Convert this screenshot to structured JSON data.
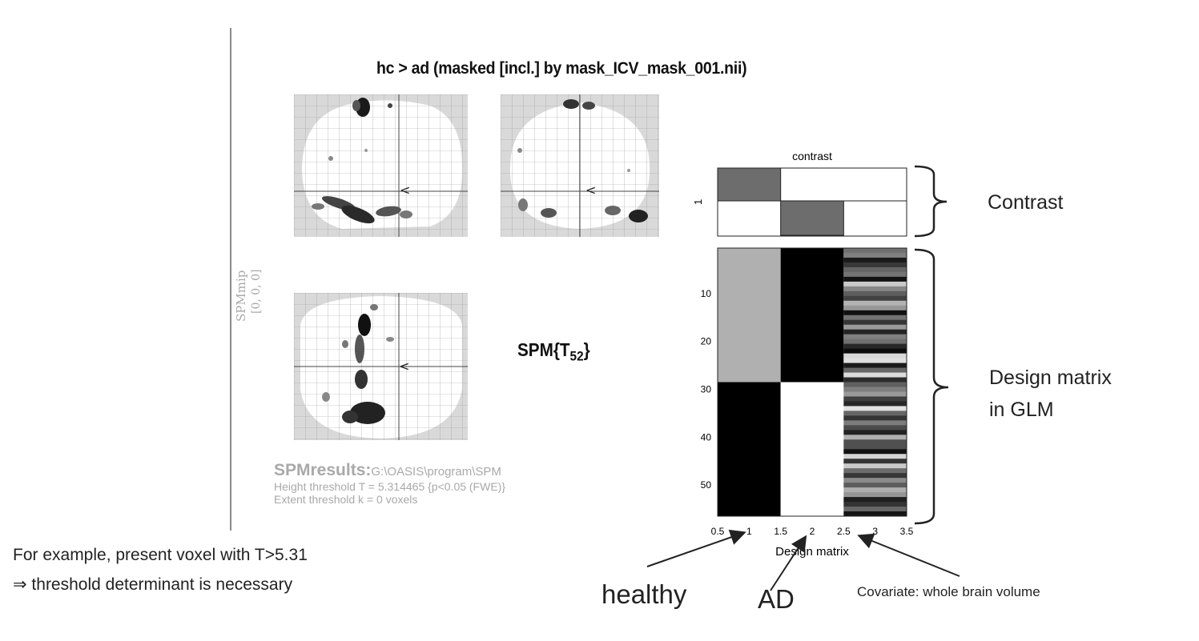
{
  "figure": {
    "title": "hc > ad (masked [incl.] by mask_ICV_mask_001.nii)",
    "side_label": "SPMmip",
    "side_coords": "[0, 0, 0]",
    "stat_label_main": "SPM{T",
    "stat_label_sub": "52",
    "stat_label_end": "}",
    "results_title": "SPMresults:",
    "results_path": "G:\\OASIS\\program\\SPM",
    "height_threshold": "Height threshold T = 5.314465  {p<0.05 (FWE)}",
    "extent_threshold": "Extent threshold k = 0 voxels"
  },
  "contrast_plot": {
    "title": "contrast",
    "ytick": "1",
    "weights": [
      1,
      -1,
      0
    ]
  },
  "design_matrix": {
    "xlabel": "Design matrix",
    "xticks": [
      "0.5",
      "1",
      "1.5",
      "2",
      "2.5",
      "3",
      "3.5"
    ],
    "yticks": [
      "10",
      "20",
      "30",
      "40",
      "50"
    ],
    "rows": 56,
    "group_split_row": 28
  },
  "annotations": {
    "contrast": "Contrast",
    "design_line1": "Design matrix",
    "design_line2": "in GLM",
    "note_line1": "For example, present voxel with T>5.31",
    "note_line2": "⇒   threshold determinant is necessary",
    "healthy": "healthy",
    "ad": "AD",
    "covariate": "Covariate: whole brain volume"
  }
}
